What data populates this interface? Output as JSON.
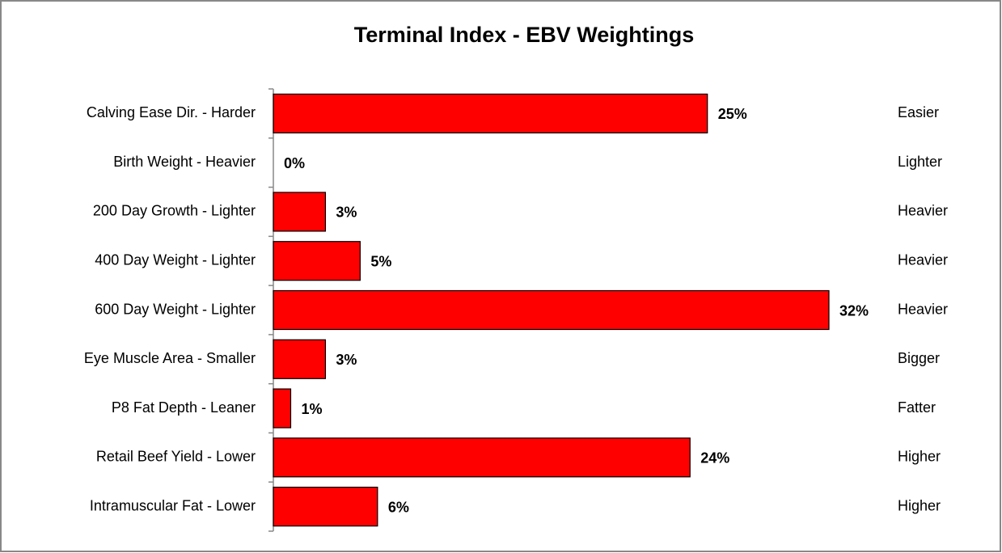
{
  "chart_data": {
    "type": "hbar",
    "title": "Terminal Index - EBV Weightings",
    "categories": [
      "Calving Ease Dir. - Harder",
      "Birth Weight - Heavier",
      "200 Day Growth - Lighter",
      "400 Day Weight - Lighter",
      "600 Day Weight - Lighter",
      "Eye Muscle Area - Smaller",
      "P8 Fat Depth - Leaner",
      "Retail Beef Yield - Lower",
      "Intramuscular Fat - Lower"
    ],
    "right_labels": [
      "Easier",
      "Lighter",
      "Heavier",
      "Heavier",
      "Heavier",
      "Bigger",
      "Fatter",
      "Higher",
      "Higher"
    ],
    "values": [
      25,
      0,
      3,
      5,
      32,
      3,
      1,
      24,
      6
    ],
    "value_labels": [
      "25%",
      "0%",
      "3%",
      "5%",
      "32%",
      "3%",
      "1%",
      "24%",
      "6%"
    ],
    "color": "#ff0000",
    "xlim": [
      0,
      32
    ]
  }
}
